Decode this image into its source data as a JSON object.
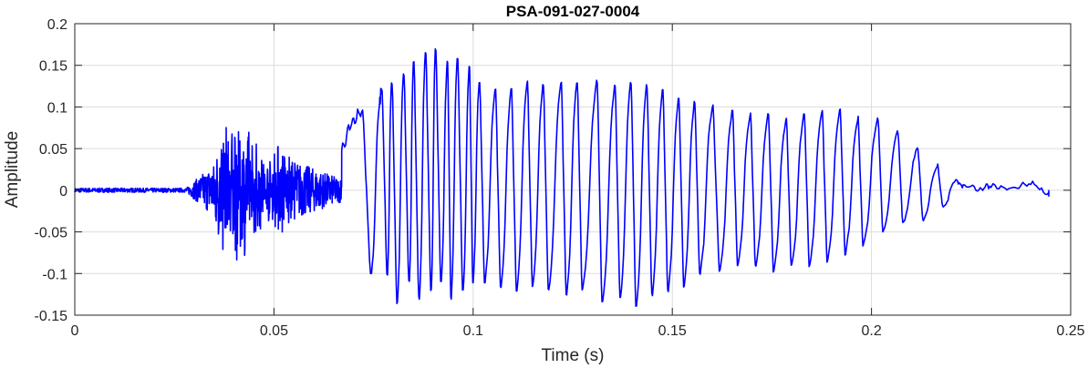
{
  "chart_data": {
    "type": "line",
    "title": "PSA-091-027-0004",
    "xlabel": "Time (s)",
    "ylabel": "Amplitude",
    "xlim": [
      0,
      0.25
    ],
    "ylim": [
      -0.15,
      0.2
    ],
    "x_ticks": [
      0,
      0.05,
      0.1,
      0.15,
      0.2,
      0.25
    ],
    "x_tick_labels": [
      "0",
      "0.05",
      "0.1",
      "0.15",
      "0.2",
      "0.25"
    ],
    "y_ticks": [
      -0.15,
      -0.1,
      -0.05,
      0,
      0.05,
      0.1,
      0.15,
      0.2
    ],
    "y_tick_labels": [
      "-0.15",
      "-0.1",
      "-0.05",
      "0",
      "0.05",
      "0.1",
      "0.15",
      "0.2"
    ],
    "grid": true,
    "series": [
      {
        "color": "#0000ff",
        "description_points": {
          "x": [
            0,
            0.02,
            0.03,
            0.035,
            0.04,
            0.045,
            0.048,
            0.05,
            0.055,
            0.06,
            0.065,
            0.067,
            0.0695,
            0.072,
            0.0745,
            0.0765,
            0.077,
            0.0785,
            0.0795,
            0.081,
            0.0825,
            0.084,
            0.085,
            0.0865,
            0.088,
            0.0895,
            0.0905,
            0.092,
            0.0935,
            0.0945,
            0.096,
            0.0975,
            0.099,
            0.1,
            0.1015,
            0.103,
            0.1055,
            0.107,
            0.1095,
            0.111,
            0.1135,
            0.115,
            0.1175,
            0.119,
            0.122,
            0.1235,
            0.126,
            0.1275,
            0.131,
            0.1325,
            0.1355,
            0.137,
            0.1395,
            0.141,
            0.1435,
            0.145,
            0.1475,
            0.149,
            0.1515,
            0.153,
            0.1555,
            0.157,
            0.16,
            0.162,
            0.165,
            0.1665,
            0.1695,
            0.171,
            0.174,
            0.1755,
            0.1785,
            0.18,
            0.183,
            0.1845,
            0.1875,
            0.189,
            0.192,
            0.1935,
            0.1965,
            0.198,
            0.2015,
            0.203,
            0.2065,
            0.208,
            0.2115,
            0.213,
            0.2165,
            0.218,
            0.221,
            0.223,
            0.227,
            0.23,
            0.235,
            0.24,
            0.2445
          ],
          "y": [
            0,
            0,
            0,
            0.04,
            0.09,
            0.08,
            0.06,
            0.045,
            0.055,
            0.03,
            0.02,
            0.05,
            0.08,
            0.095,
            -0.1,
            0.105,
            0.12,
            -0.1,
            0.13,
            -0.135,
            0.14,
            -0.11,
            0.155,
            -0.13,
            0.165,
            -0.12,
            0.17,
            -0.11,
            0.155,
            -0.13,
            0.16,
            -0.12,
            0.15,
            -0.11,
            0.13,
            -0.11,
            0.12,
            -0.115,
            0.12,
            -0.12,
            0.13,
            -0.115,
            0.125,
            -0.12,
            0.13,
            -0.125,
            0.13,
            -0.12,
            0.13,
            -0.135,
            0.125,
            -0.13,
            0.13,
            -0.14,
            0.125,
            -0.125,
            0.12,
            -0.12,
            0.11,
            -0.115,
            0.105,
            -0.1,
            0.1,
            -0.095,
            0.095,
            -0.09,
            0.09,
            -0.09,
            0.09,
            -0.095,
            0.085,
            -0.09,
            0.09,
            -0.09,
            0.095,
            -0.085,
            0.095,
            -0.075,
            0.085,
            -0.065,
            0.085,
            -0.05,
            0.07,
            -0.04,
            0.05,
            -0.035,
            0.03,
            -0.02,
            0.012,
            0.005,
            0.002,
            0.005,
            0.003,
            0.008,
            -0.004
          ]
        }
      }
    ]
  }
}
